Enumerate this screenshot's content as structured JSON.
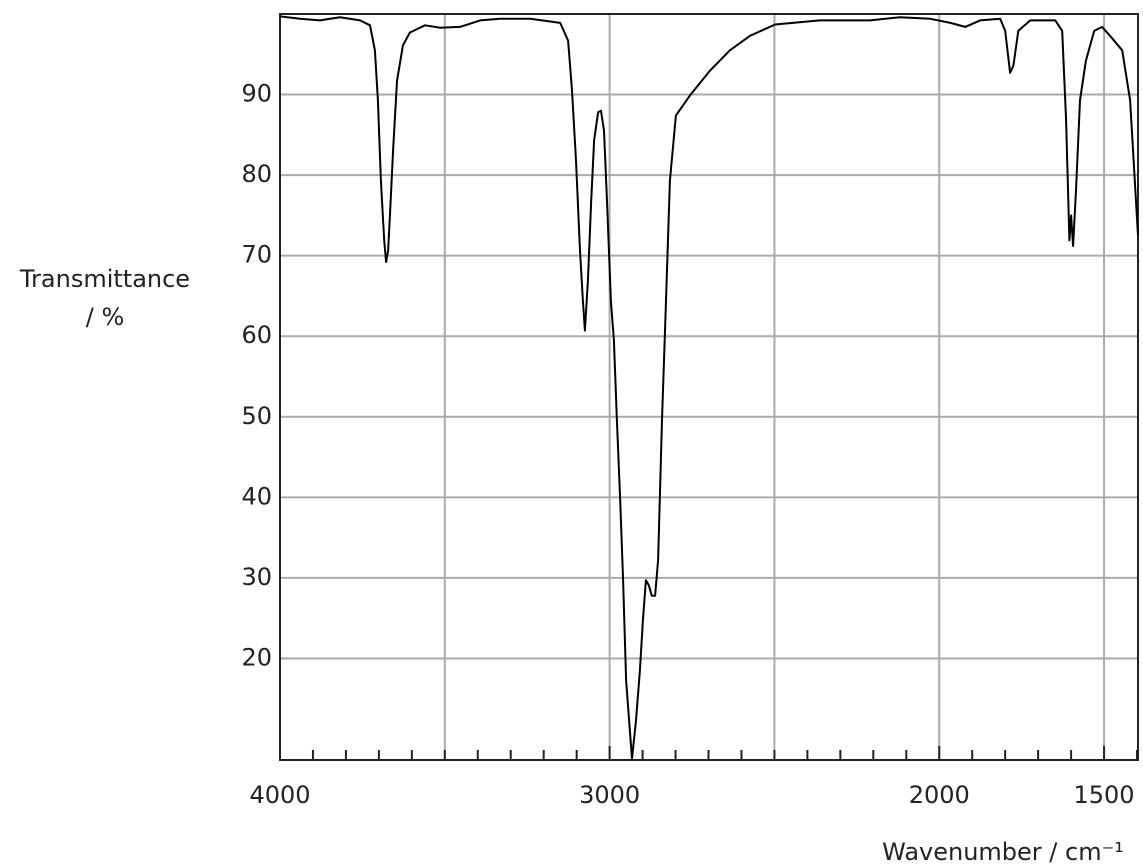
{
  "chart_data": {
    "type": "line",
    "ylabel": [
      "Transmittance",
      "/ %"
    ],
    "xlabel": "Wavenumber / cm⁻¹",
    "color": "#000000",
    "xlim": [
      4000,
      1397
    ],
    "ylim": [
      7.4,
      100
    ],
    "xticks": [
      4000,
      3000,
      2000,
      1500
    ],
    "xgrid": [
      3500,
      3000,
      2500,
      2000,
      1500
    ],
    "xminor_ticks": [
      3900,
      3800,
      3700,
      3600,
      3500,
      3400,
      3300,
      3200,
      3100,
      2900,
      2800,
      2700,
      2600,
      2500,
      2400,
      2300,
      2200,
      2100,
      1900,
      1800,
      1700,
      1600,
      1400
    ],
    "yticks": [
      20,
      30,
      40,
      50,
      60,
      70,
      80,
      90
    ],
    "grid": true,
    "x": [
      4000,
      3939,
      3879,
      3818,
      3757,
      3727,
      3712,
      3703,
      3694,
      3684,
      3678,
      3672,
      3666,
      3657,
      3645,
      3627,
      3606,
      3560,
      3515,
      3454,
      3393,
      3333,
      3241,
      3150,
      3126,
      3114,
      3102,
      3090,
      3081,
      3075,
      3066,
      3056,
      3047,
      3035,
      3026,
      3017,
      3008,
      2996,
      2987,
      2978,
      2968,
      2959,
      2950,
      2941,
      2932,
      2920,
      2908,
      2899,
      2890,
      2881,
      2872,
      2862,
      2853,
      2841,
      2829,
      2817,
      2799,
      2756,
      2695,
      2635,
      2574,
      2498,
      2362,
      2210,
      2119,
      2027,
      1966,
      1921,
      1876,
      1815,
      1800,
      1785,
      1775,
      1760,
      1724,
      1648,
      1627,
      1615,
      1605,
      1600,
      1594,
      1585,
      1573,
      1555,
      1530,
      1506,
      1482,
      1445,
      1421,
      1397
    ],
    "values": [
      99.7,
      99.4,
      99.2,
      99.6,
      99.2,
      98.6,
      95.5,
      89.3,
      79.3,
      71.9,
      69.2,
      70.6,
      75.4,
      83.1,
      91.7,
      96.1,
      97.7,
      98.6,
      98.3,
      98.4,
      99.2,
      99.4,
      99.4,
      98.9,
      96.7,
      90.5,
      81.8,
      70.6,
      64.4,
      60.7,
      66.9,
      76.8,
      84.3,
      87.8,
      88.0,
      85.5,
      76.8,
      64.4,
      59.5,
      49.6,
      39.6,
      29.7,
      17.3,
      12.3,
      7.6,
      12.3,
      18.5,
      24.7,
      29.7,
      29.1,
      27.8,
      27.8,
      32.2,
      49.6,
      64.4,
      79.3,
      87.4,
      89.9,
      93.0,
      95.5,
      97.3,
      98.7,
      99.2,
      99.2,
      99.6,
      99.4,
      98.9,
      98.4,
      99.2,
      99.4,
      97.9,
      92.7,
      93.6,
      97.9,
      99.2,
      99.2,
      97.9,
      86.8,
      71.9,
      75.0,
      71.2,
      78.1,
      89.3,
      94.2,
      97.9,
      98.4,
      97.3,
      95.5,
      89.3,
      72.5
    ]
  }
}
